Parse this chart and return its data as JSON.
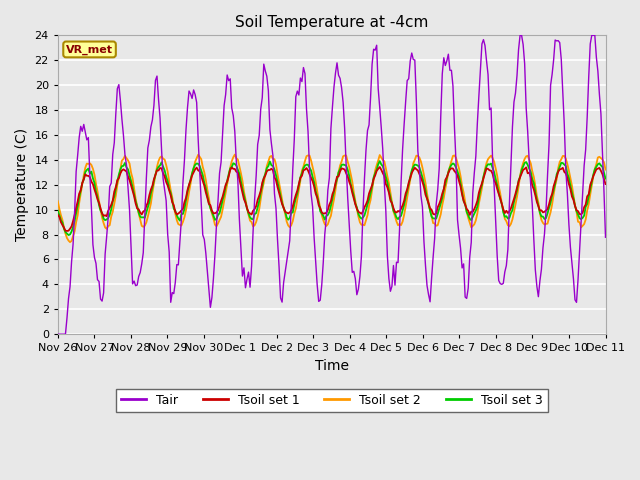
{
  "title": "Soil Temperature at -4cm",
  "xlabel": "Time",
  "ylabel": "Temperature (C)",
  "ylim": [
    0,
    24
  ],
  "yticks": [
    0,
    2,
    4,
    6,
    8,
    10,
    12,
    14,
    16,
    18,
    20,
    22,
    24
  ],
  "n_days": 15,
  "x_tick_labels": [
    "Nov 26",
    "Nov 27",
    "Nov 28",
    "Nov 29",
    "Nov 30",
    "Dec 1",
    "Dec 2",
    "Dec 3",
    "Dec 4",
    "Dec 5",
    "Dec 6",
    "Dec 7",
    "Dec 8",
    "Dec 9",
    "Dec 10",
    "Dec 11"
  ],
  "colors": {
    "Tair": "#9900cc",
    "Tsoil1": "#cc0000",
    "Tsoil2": "#ff9900",
    "Tsoil3": "#00cc00"
  },
  "legend_labels": [
    "Tair",
    "Tsoil set 1",
    "Tsoil set 2",
    "Tsoil set 3"
  ],
  "annotation_text": "VR_met",
  "annotation_box_color": "#ffff99",
  "annotation_border_color": "#aa8800",
  "annotation_text_color": "#880000",
  "background_color": "#e8e8e8",
  "grid_color": "#ffffff",
  "figsize": [
    6.4,
    4.8
  ],
  "dpi": 100
}
